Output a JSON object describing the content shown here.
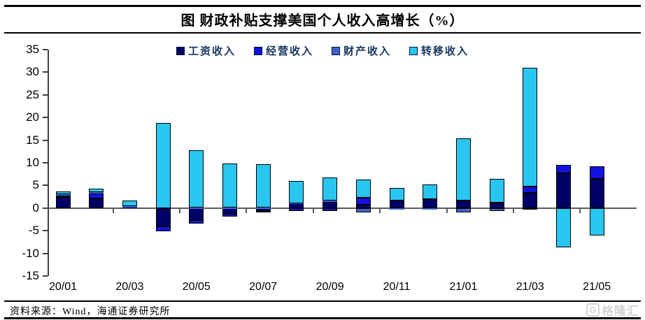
{
  "title": {
    "text": "图 财政补贴支撑美国个人收入高增长（%）"
  },
  "footer": {
    "source": "资料来源：Wind，海通证券研究所"
  },
  "watermark": {
    "g": "G",
    "text": "格隆汇"
  },
  "chart_data": {
    "type": "bar",
    "stacked": true,
    "title": "图 财政补贴支撑美国个人收入高增长（%）",
    "xlabel": "",
    "ylabel": "",
    "ylim": [
      -15,
      35
    ],
    "ytick_step": 5,
    "grid": false,
    "legend_position": "top",
    "categories": [
      "20/01",
      "20/02",
      "20/03",
      "20/04",
      "20/05",
      "20/06",
      "20/07",
      "20/08",
      "20/09",
      "20/10",
      "20/11",
      "20/12",
      "21/01",
      "21/02",
      "21/03",
      "21/04",
      "21/05"
    ],
    "x_tick_labels": [
      "20/01",
      "20/03",
      "20/05",
      "20/07",
      "20/09",
      "20/11",
      "21/01",
      "21/03",
      "21/05"
    ],
    "series": [
      {
        "name": "工资收入",
        "color": "#000066",
        "values": [
          2.4,
          2.2,
          0.3,
          -4.0,
          -2.6,
          -1.2,
          -0.6,
          1.0,
          1.4,
          0.8,
          1.7,
          1.9,
          1.7,
          1.2,
          3.3,
          7.7,
          6.5
        ]
      },
      {
        "name": "经营收入",
        "color": "#1212dd",
        "values": [
          0.4,
          1.0,
          0.0,
          -1.2,
          -0.8,
          -0.7,
          -0.4,
          -0.6,
          -0.7,
          1.5,
          0.0,
          0.0,
          0.0,
          0.0,
          1.5,
          1.9,
          2.8
        ]
      },
      {
        "name": "财产收入",
        "color": "#3d64cb",
        "values": [
          0.3,
          0.3,
          0.1,
          0.0,
          0.1,
          0.1,
          0.1,
          0.1,
          0.2,
          -1.0,
          -0.3,
          -0.3,
          -0.9,
          -0.7,
          -0.4,
          0.0,
          0.0
        ]
      },
      {
        "name": "转移收入",
        "color": "#29c6f0",
        "values": [
          0.6,
          0.8,
          1.3,
          18.8,
          12.7,
          9.7,
          9.6,
          4.9,
          5.1,
          4.0,
          2.8,
          3.3,
          13.7,
          5.2,
          26.2,
          -8.7,
          -6.0
        ]
      }
    ]
  }
}
